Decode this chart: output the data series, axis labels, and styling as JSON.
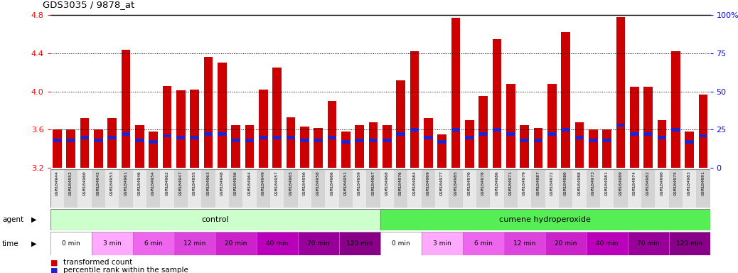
{
  "title": "GDS3035 / 9878_at",
  "samples": [
    "GSM184944",
    "GSM184952",
    "GSM184960",
    "GSM184945",
    "GSM184953",
    "GSM184961",
    "GSM184946",
    "GSM184954",
    "GSM184962",
    "GSM184947",
    "GSM184955",
    "GSM184963",
    "GSM184948",
    "GSM184956",
    "GSM184964",
    "GSM184949",
    "GSM184957",
    "GSM184965",
    "GSM184950",
    "GSM184958",
    "GSM184966",
    "GSM184951",
    "GSM184959",
    "GSM184967",
    "GSM184968",
    "GSM184976",
    "GSM184984",
    "GSM184969",
    "GSM184977",
    "GSM184985",
    "GSM184970",
    "GSM184978",
    "GSM184986",
    "GSM184971",
    "GSM184979",
    "GSM184987",
    "GSM184972",
    "GSM184980",
    "GSM184988",
    "GSM184973",
    "GSM184981",
    "GSM184989",
    "GSM184974",
    "GSM184982",
    "GSM184990",
    "GSM184975",
    "GSM184983",
    "GSM184991"
  ],
  "transformed_count": [
    3.6,
    3.6,
    3.72,
    3.6,
    3.72,
    4.44,
    3.65,
    3.58,
    4.06,
    4.01,
    4.02,
    4.36,
    4.3,
    3.65,
    3.65,
    4.02,
    4.25,
    3.73,
    3.63,
    3.62,
    3.9,
    3.58,
    3.65,
    3.68,
    3.65,
    4.12,
    4.42,
    3.72,
    3.55,
    4.77,
    3.7,
    3.95,
    4.55,
    4.08,
    3.65,
    3.62,
    4.08,
    4.62,
    3.68,
    3.6,
    3.6,
    4.78,
    4.05,
    4.05,
    3.7,
    4.42,
    3.58,
    3.97
  ],
  "percentile_rank": [
    18,
    18,
    20,
    18,
    20,
    22,
    18,
    17,
    21,
    20,
    20,
    22,
    22,
    18,
    18,
    20,
    20,
    20,
    18,
    18,
    20,
    17,
    18,
    18,
    18,
    22,
    25,
    20,
    17,
    25,
    20,
    22,
    25,
    22,
    18,
    18,
    22,
    25,
    20,
    18,
    18,
    28,
    22,
    22,
    20,
    25,
    17,
    21
  ],
  "bar_color": "#cc0000",
  "percentile_color": "#2222cc",
  "ylim_left": [
    3.2,
    4.8
  ],
  "ylim_right": [
    0,
    100
  ],
  "yticks_left": [
    3.2,
    3.6,
    4.0,
    4.4,
    4.8
  ],
  "yticks_right": [
    0,
    25,
    50,
    75,
    100
  ],
  "yticklabels_right": [
    "0",
    "25",
    "50",
    "75",
    "100%"
  ],
  "control_count": 24,
  "agent_color_control": "#ccffcc",
  "agent_color_cumene": "#55ee55",
  "time_colors": [
    "#ffffff",
    "#ffaaff",
    "#ee66ee",
    "#dd44dd",
    "#cc22cc",
    "#bb00bb",
    "#990099",
    "#880088"
  ]
}
